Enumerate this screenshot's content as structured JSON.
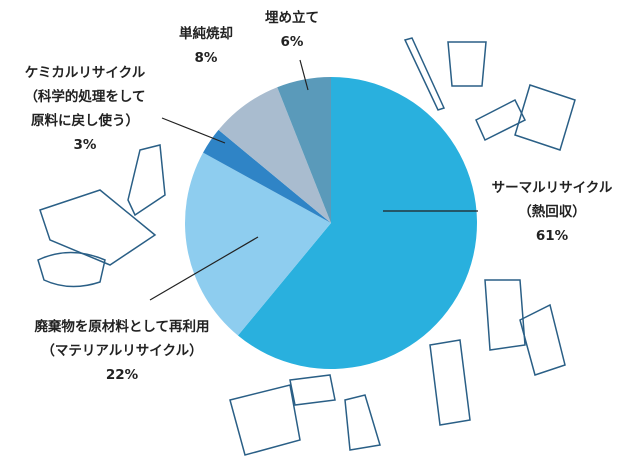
{
  "chart_data": {
    "type": "pie",
    "categories": [
      [
        "サーマルリサイクル",
        "（熱回収）"
      ],
      [
        "廃棄物を原材料として再利用",
        "（マテリアルリサイクル）"
      ],
      [
        "ケミカルリサイクル",
        "（科学的処理をして",
        "原料に戻し使う）"
      ],
      [
        "単純焼却"
      ],
      [
        "埋め立て"
      ]
    ],
    "values": [
      61,
      22,
      3,
      8,
      6
    ],
    "value_labels": [
      "61%",
      "22%",
      "3%",
      "8%",
      "6%"
    ],
    "colors": [
      "#29b0de",
      "#8ecdef",
      "#2f84c6",
      "#a9bccf",
      "#5a9aba"
    ],
    "start_angle": 0,
    "direction": "clockwise"
  }
}
